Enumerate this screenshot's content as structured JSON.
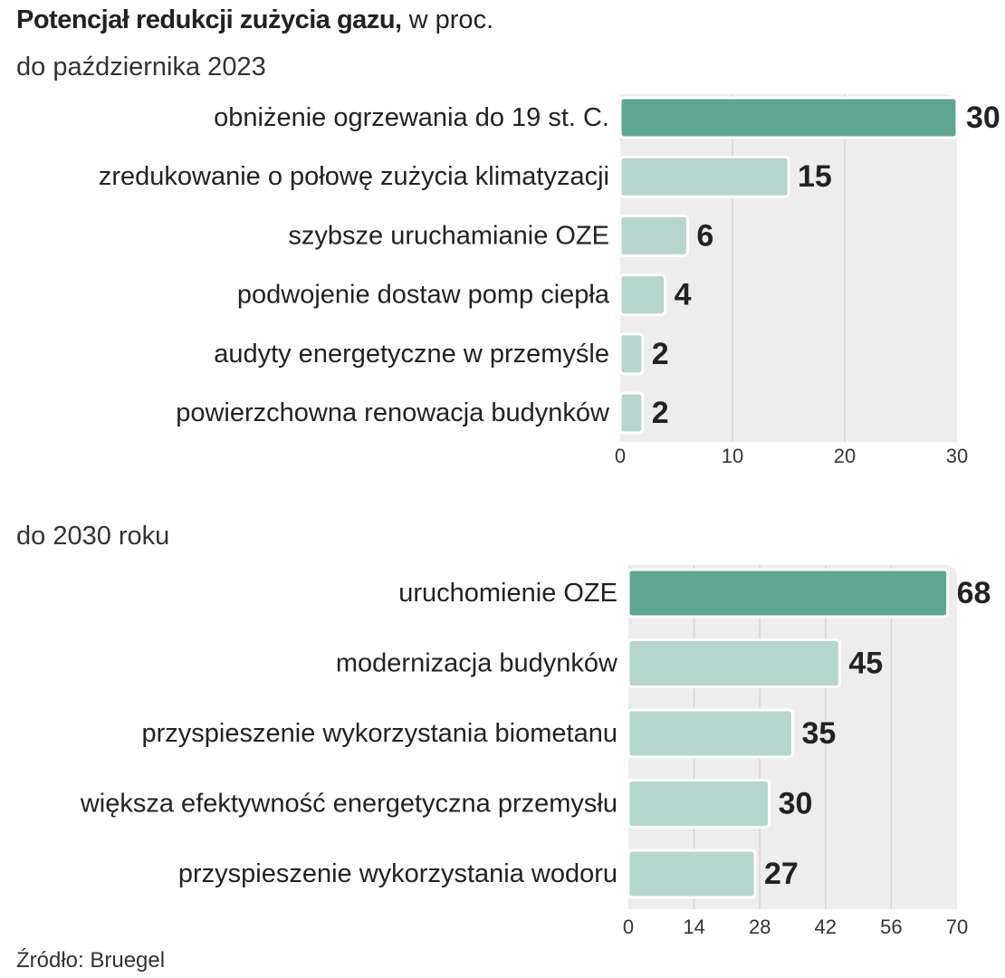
{
  "title": {
    "bold": "Potencjał redukcji zużycia gazu,",
    "unit": " w proc."
  },
  "source": "Źródło: Bruegel",
  "colors": {
    "highlight": "#5fa692",
    "bar": "#b4d6cc",
    "panel": "#ededed",
    "grid": "#d6d6d6"
  },
  "chart_data": [
    {
      "type": "bar",
      "orientation": "horizontal",
      "subtitle": "do października 2023",
      "categories": [
        "obniżenie ogrzewania do 19 st. C.",
        "zredukowanie o połowę zużycia klimatyzacji",
        "szybsze uruchamianie OZE",
        "podwojenie dostaw pomp ciepła",
        "audyty energetyczne w przemyśle",
        "powierzchowna renowacja budynków"
      ],
      "values": [
        30,
        15,
        6,
        4,
        2,
        2
      ],
      "value_labels": [
        "30",
        "15",
        "6",
        "4",
        "2",
        "2"
      ],
      "highlight_index": 0,
      "xlim": [
        0,
        30
      ],
      "xticks": [
        0,
        10,
        20,
        30
      ],
      "xtick_labels": [
        "0",
        "10",
        "20",
        "30"
      ],
      "grid": true
    },
    {
      "type": "bar",
      "orientation": "horizontal",
      "subtitle": "do 2030 roku",
      "categories": [
        "uruchomienie OZE",
        "modernizacja budynków",
        "przyspieszenie wykorzystania biometanu",
        "większa efektywność energetyczna przemysłu",
        "przyspieszenie wykorzystania wodoru"
      ],
      "values": [
        68,
        45,
        35,
        30,
        27
      ],
      "value_labels": [
        "68",
        "45",
        "35",
        "30",
        "27"
      ],
      "highlight_index": 0,
      "xlim": [
        0,
        70
      ],
      "xticks": [
        0,
        14,
        28,
        42,
        56,
        70
      ],
      "xtick_labels": [
        "0",
        "14",
        "28",
        "42",
        "56",
        "70"
      ],
      "grid": true
    }
  ]
}
